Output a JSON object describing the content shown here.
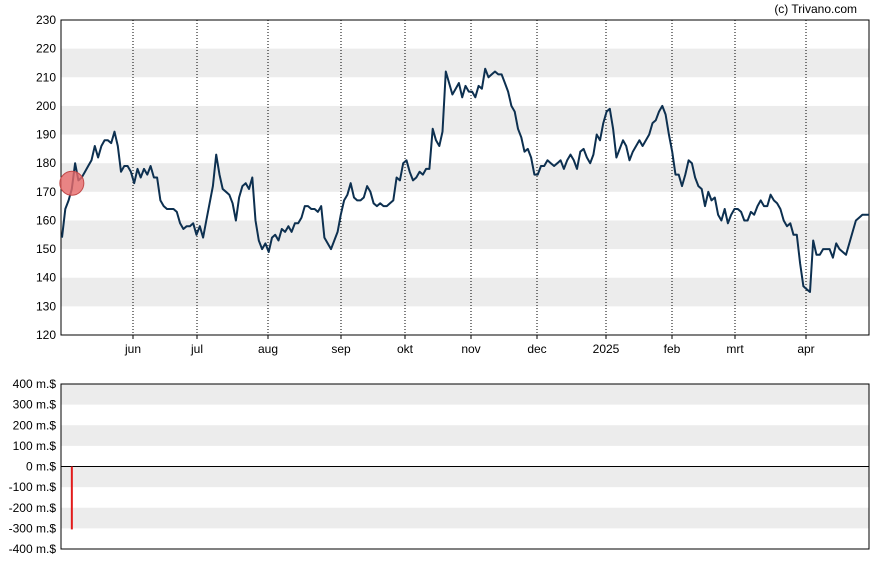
{
  "credit": "(c) Trivano.com",
  "colors": {
    "price_line": "#0d3050",
    "band": "#ececec",
    "marker": "#e86a6a",
    "volume_bar": "#e21b1b",
    "axis": "#000000"
  },
  "chart_data": [
    {
      "type": "line",
      "title": "",
      "xlabel": "",
      "ylabel": "",
      "ylim": [
        120,
        230
      ],
      "y_ticks": [
        "120",
        "130",
        "140",
        "150",
        "160",
        "170",
        "180",
        "190",
        "200",
        "210",
        "220",
        "230"
      ],
      "x_ticks": [
        "jun",
        "jul",
        "aug",
        "sep",
        "okt",
        "nov",
        "dec",
        "2025",
        "feb",
        "mrt",
        "apr"
      ],
      "grid": "alternating horizontal bands, dotted vertical lines at month ticks",
      "highlight_marker": {
        "x_index": 3,
        "value": 173
      },
      "series": [
        {
          "values": [
            154,
            164,
            167,
            171,
            180,
            174,
            175,
            177,
            179,
            181,
            186,
            182,
            186,
            188,
            188,
            187,
            191,
            186,
            177,
            179,
            179,
            177,
            173,
            178,
            175,
            178,
            176,
            179,
            175,
            175,
            167,
            165,
            164,
            164,
            164,
            163,
            159,
            157,
            158,
            158,
            159,
            155,
            158,
            154,
            160,
            166,
            172,
            183,
            176,
            171,
            170,
            169,
            166,
            160,
            168,
            172,
            173,
            171,
            175,
            160,
            153,
            150,
            152,
            149,
            154,
            155,
            153,
            157,
            156,
            158,
            156,
            159,
            159,
            161,
            165,
            165,
            164,
            164,
            163,
            165,
            154,
            152,
            150,
            153,
            156,
            162,
            167,
            169,
            173,
            168,
            167,
            167,
            168,
            172,
            170,
            166,
            165,
            166,
            165,
            165,
            166,
            167,
            175,
            174,
            180,
            181,
            177,
            174,
            175,
            177,
            176,
            178,
            178,
            192,
            188,
            186,
            191,
            212,
            208,
            204,
            206,
            208,
            203,
            207,
            205,
            205,
            203,
            207,
            206,
            213,
            210,
            211,
            212,
            211,
            211,
            208,
            205,
            200,
            198,
            192,
            189,
            184,
            185,
            182,
            176,
            176,
            179,
            179,
            181,
            180,
            179,
            180,
            181,
            178,
            181,
            183,
            181,
            178,
            184,
            185,
            182,
            180,
            183,
            190,
            188,
            194,
            198,
            199,
            192,
            182,
            185,
            188,
            186,
            181,
            184,
            186,
            188,
            186,
            188,
            190,
            194,
            195,
            198,
            200,
            197,
            190,
            184,
            176,
            176,
            172,
            176,
            181,
            180,
            175,
            172,
            171,
            165,
            170,
            167,
            168,
            162,
            160,
            164,
            159,
            162,
            164,
            164,
            163,
            160,
            160,
            163,
            162,
            165,
            167,
            165,
            165,
            169,
            167,
            166,
            164,
            160,
            158,
            159,
            155,
            155,
            145,
            137,
            136,
            135,
            153,
            148,
            148,
            150,
            150,
            150,
            147,
            152,
            150,
            149,
            148,
            152,
            156,
            160,
            161,
            162,
            162,
            162
          ],
          "x_start_date": "",
          "x_end_date": ""
        }
      ]
    },
    {
      "type": "bar",
      "title": "",
      "xlabel": "",
      "ylabel": "",
      "ylim": [
        -400,
        400
      ],
      "y_ticks": [
        "-400 m.$",
        "-300 m.$",
        "-200 m.$",
        "-100 m.$",
        "0 m.$",
        "100 m.$",
        "200 m.$",
        "300 m.$",
        "400 m.$"
      ],
      "grid": "alternating horizontal bands, zero line",
      "series": [
        {
          "bars": [
            {
              "x_index": 3,
              "value": -305
            }
          ]
        }
      ]
    }
  ]
}
